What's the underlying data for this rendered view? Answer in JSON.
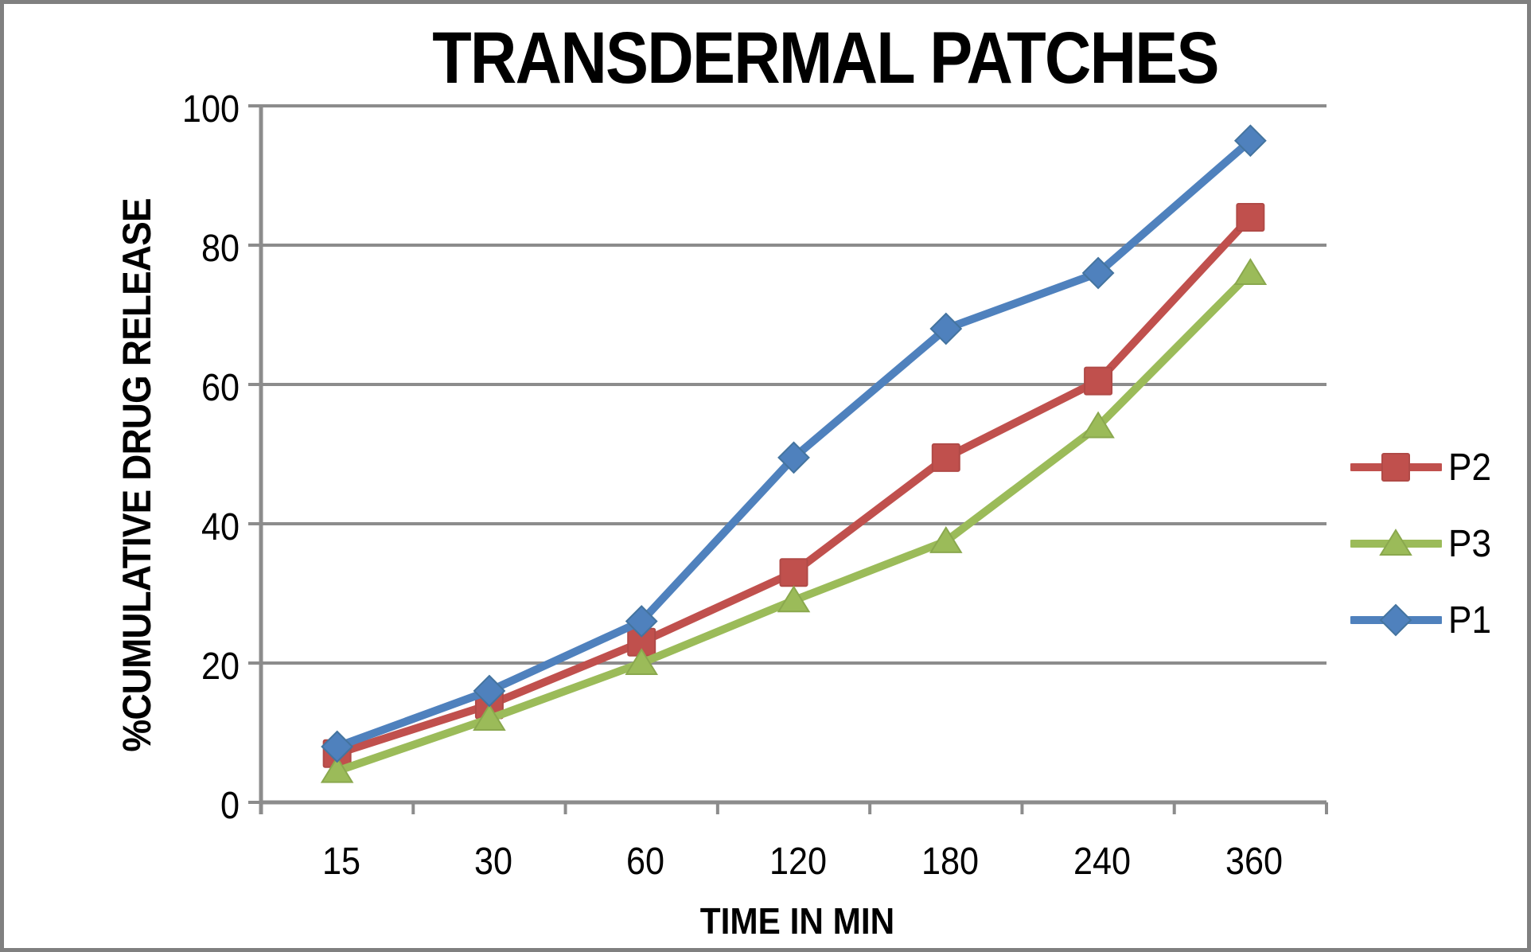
{
  "chart_data": {
    "type": "line",
    "title": "TRANSDERMAL PATCHES",
    "xlabel": "TIME IN MIN",
    "ylabel": "%CUMULATIVE DRUG RELEASE",
    "categories": [
      "15",
      "30",
      "60",
      "120",
      "180",
      "240",
      "360"
    ],
    "series": [
      {
        "name": "P2",
        "marker": "square",
        "color": "#C0504D",
        "edge": "#B04A47",
        "values": [
          7,
          14,
          23,
          33,
          49.5,
          60.5,
          84
        ]
      },
      {
        "name": "P3",
        "marker": "triangle",
        "color": "#9BBB59",
        "edge": "#8AA84E",
        "values": [
          4.5,
          12,
          20,
          29,
          37.5,
          54,
          76
        ]
      },
      {
        "name": "P1",
        "marker": "diamond",
        "color": "#4F81BD",
        "edge": "#44749F",
        "values": [
          8,
          16,
          26,
          49.5,
          68,
          76,
          95
        ]
      }
    ],
    "ylim": [
      0,
      100
    ],
    "yticks": [
      0,
      20,
      40,
      60,
      80,
      100
    ],
    "grid": true,
    "legend_position": "right",
    "legend_order": [
      "P2",
      "P3",
      "P1"
    ]
  },
  "colors": {
    "gridline": "#8C8C8C",
    "axis": "#8C8C8C",
    "frame_border": "#808080",
    "background": "#FFFFFF",
    "text": "#000000"
  }
}
